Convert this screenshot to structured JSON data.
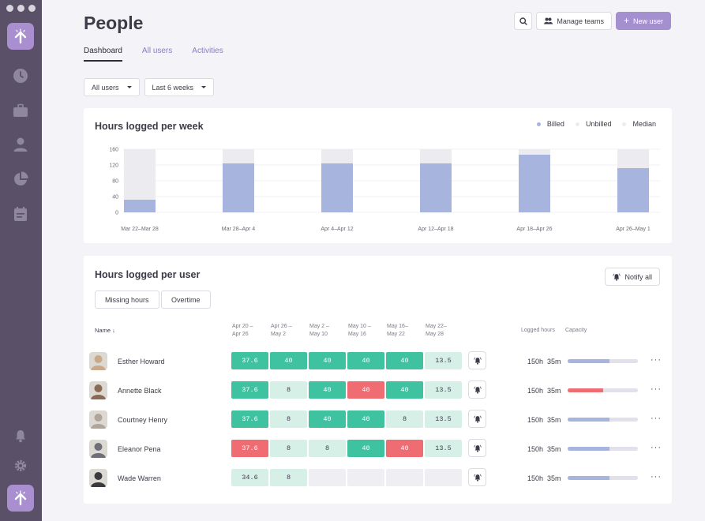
{
  "page": {
    "title": "People"
  },
  "header": {
    "manage_teams_label": "Manage teams",
    "new_user_label": "New user"
  },
  "tabs": [
    {
      "label": "Dashboard"
    },
    {
      "label": "All users"
    },
    {
      "label": "Activities"
    }
  ],
  "filters": {
    "users": "All users",
    "period": "Last 6 weeks"
  },
  "weekly_card": {
    "title": "Hours logged per week",
    "legend": [
      {
        "label": "Billed",
        "color": "#a7b5de"
      },
      {
        "label": "Unbilled",
        "color": "#ecebf0"
      },
      {
        "label": "Median",
        "color": "#ecebf0"
      }
    ]
  },
  "chart_data": {
    "type": "bar",
    "title": "Hours logged per week",
    "categories": [
      "Mar 22–Mar 28",
      "Mar 28–Apr 4",
      "Apr 4–Apr 12",
      "Apr 12–Apr 18",
      "Apr 18–Apr 26",
      "Apr 26–May 1"
    ],
    "series": [
      {
        "name": "Billed",
        "values": [
          32,
          124,
          124,
          124,
          146,
          112
        ],
        "color": "#a7b5de"
      },
      {
        "name": "Unbilled",
        "values": [
          128,
          36,
          36,
          36,
          14,
          48
        ],
        "color": "#ecebf0"
      }
    ],
    "yticks": [
      0,
      40,
      80,
      120,
      160
    ],
    "ylim": [
      0,
      160
    ],
    "grid": true,
    "legend_position": "top-right",
    "stacked": true
  },
  "users_card": {
    "title": "Hours logged per user",
    "notify_label": "Notify all",
    "filter_pills": [
      "Missing hours",
      "Overtime"
    ],
    "name_header": "Name",
    "sort_arrow": "↓",
    "week_headers": [
      {
        "line1": "Apr 20 –",
        "line2": "Apr 26"
      },
      {
        "line1": "Apr 26 –",
        "line2": "May 2"
      },
      {
        "line1": "May 2 –",
        "line2": "May 10"
      },
      {
        "line1": "May 10 –",
        "line2": "May 16"
      },
      {
        "line1": "May 16–",
        "line2": "May 22"
      },
      {
        "line1": "May 22–",
        "line2": "May 28"
      }
    ],
    "logged_header": "Logged hours",
    "capacity_header": "Capacity",
    "more_label": "···",
    "rows": [
      {
        "name": "Esther Howard",
        "cells": [
          {
            "v": "37.6",
            "s": "full"
          },
          {
            "v": "40",
            "s": "full"
          },
          {
            "v": "40",
            "s": "full"
          },
          {
            "v": "40",
            "s": "full"
          },
          {
            "v": "40",
            "s": "full"
          },
          {
            "v": "13.5",
            "s": "light"
          }
        ],
        "logged": "150h  35m",
        "capacity": 0.6,
        "capacity_color": "#a7b5de",
        "avatar_color": "#c9a98a"
      },
      {
        "name": "Annette Black",
        "cells": [
          {
            "v": "37.6",
            "s": "full"
          },
          {
            "v": "8",
            "s": "light"
          },
          {
            "v": "40",
            "s": "full"
          },
          {
            "v": "40",
            "s": "red"
          },
          {
            "v": "40",
            "s": "full"
          },
          {
            "v": "13.5",
            "s": "light"
          }
        ],
        "logged": "150h  35m",
        "capacity": 0.5,
        "capacity_color": "#ee6c72",
        "avatar_color": "#8a6a55"
      },
      {
        "name": "Courtney Henry",
        "cells": [
          {
            "v": "37.6",
            "s": "full"
          },
          {
            "v": "8",
            "s": "light"
          },
          {
            "v": "40",
            "s": "full"
          },
          {
            "v": "40",
            "s": "full"
          },
          {
            "v": "8",
            "s": "light"
          },
          {
            "v": "13.5",
            "s": "light"
          }
        ],
        "logged": "150h  35m",
        "capacity": 0.6,
        "capacity_color": "#a7b5de",
        "avatar_color": "#b0a59a"
      },
      {
        "name": "Eleanor Pena",
        "cells": [
          {
            "v": "37.6",
            "s": "red"
          },
          {
            "v": "8",
            "s": "light"
          },
          {
            "v": "8",
            "s": "light"
          },
          {
            "v": "40",
            "s": "full"
          },
          {
            "v": "40",
            "s": "red"
          },
          {
            "v": "13.5",
            "s": "light"
          }
        ],
        "logged": "150h  35m",
        "capacity": 0.6,
        "capacity_color": "#a7b5de",
        "avatar_color": "#6d7078"
      },
      {
        "name": "Wade Warren",
        "cells": [
          {
            "v": "34.6",
            "s": "light"
          },
          {
            "v": "8",
            "s": "light"
          },
          {
            "v": "",
            "s": "empty"
          },
          {
            "v": "",
            "s": "empty"
          },
          {
            "v": "",
            "s": "empty"
          },
          {
            "v": "",
            "s": "empty"
          }
        ],
        "logged": "150h  35m",
        "capacity": 0.6,
        "capacity_color": "#a7b5de",
        "avatar_color": "#3a3a3e"
      }
    ]
  }
}
